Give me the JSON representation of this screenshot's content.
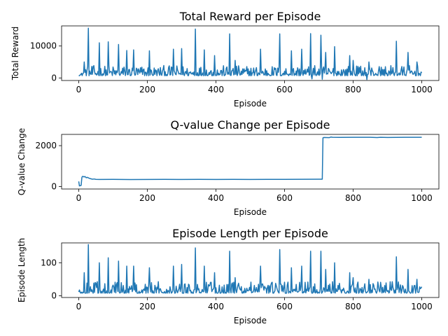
{
  "chart_data": [
    {
      "type": "line",
      "title": "Total Reward per Episode",
      "xlabel": "Episode",
      "ylabel": "Total Reward",
      "xlim": [
        -50,
        1050
      ],
      "ylim": [
        -800,
        16300
      ],
      "xticks": [
        0,
        200,
        400,
        600,
        800,
        1000
      ],
      "yticks": [
        0,
        10000
      ],
      "grid": false,
      "color": "#1f77b4",
      "series": [
        {
          "pattern": "noisy",
          "base": 700,
          "spread": 3200,
          "end_x": 1000,
          "spikes": [
            [
              15,
              5000
            ],
            [
              28,
              15600
            ],
            [
              60,
              11000
            ],
            [
              85,
              11300
            ],
            [
              115,
              10500
            ],
            [
              140,
              8600
            ],
            [
              160,
              8800
            ],
            [
              205,
              8500
            ],
            [
              275,
              9000
            ],
            [
              300,
              9200
            ],
            [
              340,
              15300
            ],
            [
              365,
              8800
            ],
            [
              395,
              7000
            ],
            [
              440,
              13800
            ],
            [
              455,
              5500
            ],
            [
              530,
              9000
            ],
            [
              585,
              13800
            ],
            [
              620,
              8500
            ],
            [
              650,
              9000
            ],
            [
              675,
              13900
            ],
            [
              705,
              13400
            ],
            [
              720,
              8000
            ],
            [
              745,
              9800
            ],
            [
              790,
              7000
            ],
            [
              800,
              5500
            ],
            [
              845,
              5000
            ],
            [
              925,
              11500
            ],
            [
              960,
              8000
            ],
            [
              985,
              5000
            ]
          ],
          "dips": [
            [
              680,
              -300
            ],
            [
              710,
              -400
            ],
            [
              840,
              -500
            ]
          ]
        }
      ]
    },
    {
      "type": "line",
      "title": "Q-value Change per Episode",
      "xlabel": "Episode",
      "ylabel": "Q-value Change",
      "xlim": [
        -50,
        1050
      ],
      "ylim": [
        -120,
        2550
      ],
      "xticks": [
        0,
        200,
        400,
        600,
        800,
        1000
      ],
      "yticks": [
        0,
        2000
      ],
      "grid": false,
      "color": "#1f77b4",
      "series": [
        {
          "pattern": "points",
          "x": [
            0,
            2,
            3,
            5,
            7,
            9,
            10,
            12,
            15,
            18,
            22,
            25,
            30,
            35,
            40,
            45,
            50,
            60,
            100,
            150,
            200,
            250,
            300,
            350,
            400,
            450,
            500,
            550,
            600,
            650,
            700,
            710,
            712,
            715,
            730,
            735,
            740,
            760,
            800,
            850,
            870,
            880,
            900,
            950,
            1000
          ],
          "y": [
            250,
            30,
            50,
            40,
            60,
            420,
            480,
            500,
            470,
            490,
            430,
            450,
            410,
            380,
            360,
            370,
            350,
            345,
            350,
            340,
            345,
            350,
            345,
            350,
            345,
            350,
            345,
            350,
            350,
            355,
            360,
            360,
            2380,
            2400,
            2390,
            2420,
            2410,
            2405,
            2410,
            2410,
            2395,
            2410,
            2400,
            2410,
            2410
          ]
        }
      ]
    },
    {
      "type": "line",
      "title": "Episode Length per Episode",
      "xlabel": "Episode",
      "ylabel": "Episode Length",
      "xlim": [
        -50,
        1050
      ],
      "ylim": [
        -5,
        160
      ],
      "xticks": [
        0,
        200,
        400,
        600,
        800,
        1000
      ],
      "yticks": [
        0,
        100
      ],
      "grid": false,
      "color": "#1f77b4",
      "series": [
        {
          "pattern": "noisy",
          "base": 8,
          "spread": 35,
          "end_x": 1000,
          "spikes": [
            [
              15,
              70
            ],
            [
              28,
              155
            ],
            [
              60,
              100
            ],
            [
              85,
              115
            ],
            [
              115,
              105
            ],
            [
              140,
              90
            ],
            [
              160,
              90
            ],
            [
              205,
              85
            ],
            [
              275,
              90
            ],
            [
              300,
              95
            ],
            [
              340,
              145
            ],
            [
              365,
              90
            ],
            [
              395,
              70
            ],
            [
              440,
              135
            ],
            [
              455,
              55
            ],
            [
              530,
              90
            ],
            [
              585,
              140
            ],
            [
              620,
              85
            ],
            [
              650,
              90
            ],
            [
              675,
              135
            ],
            [
              705,
              135
            ],
            [
              720,
              80
            ],
            [
              745,
              100
            ],
            [
              790,
              70
            ],
            [
              800,
              55
            ],
            [
              845,
              50
            ],
            [
              925,
              118
            ],
            [
              960,
              80
            ],
            [
              985,
              50
            ]
          ],
          "dips": []
        }
      ]
    }
  ]
}
